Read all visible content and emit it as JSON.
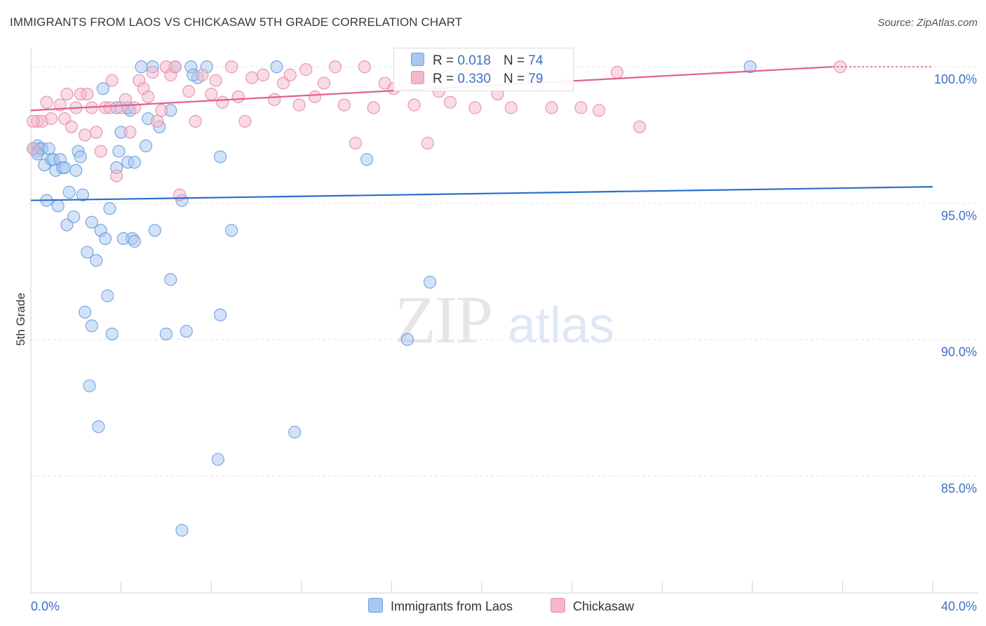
{
  "header": {
    "title": "IMMIGRANTS FROM LAOS VS CHICKASAW 5TH GRADE CORRELATION CHART",
    "source": "Source: ZipAtlas.com"
  },
  "watermark": {
    "zip": "ZIP",
    "atlas": "atlas"
  },
  "legend_stats": {
    "r_label": "R =",
    "n_label": "N =",
    "rows": [
      {
        "name": "Immigrants from Laos",
        "r": "0.018",
        "n": "74",
        "color": "#a8c8f0"
      },
      {
        "name": "Chickasaw",
        "r": "0.330",
        "n": "79",
        "color": "#f4b8cc"
      }
    ]
  },
  "chart_data": {
    "type": "scatter",
    "title": "IMMIGRANTS FROM LAOS VS CHICKASAW 5TH GRADE CORRELATION CHART",
    "xlabel": "",
    "ylabel": "5th Grade",
    "xlim": [
      0,
      40
    ],
    "ylim": [
      80.7,
      100.7
    ],
    "x_tick_labels": [
      "0.0%",
      "40.0%"
    ],
    "y_ticks": [
      {
        "value": 100,
        "label": "100.0%"
      },
      {
        "value": 95,
        "label": "95.0%"
      },
      {
        "value": 90,
        "label": "90.0%"
      },
      {
        "value": 85,
        "label": "85.0%"
      }
    ],
    "grid": true,
    "legend_position": "bottom",
    "series": [
      {
        "name": "Immigrants from Laos",
        "color": "#6fa0e0",
        "fill": "#a8c8f0",
        "line_color": "#2a6fcc",
        "r": 0.018,
        "n": 74,
        "trend": {
          "x": [
            0,
            40
          ],
          "y": [
            95.1,
            95.6
          ]
        },
        "points": [
          [
            0.1,
            97.0
          ],
          [
            0.3,
            97.1
          ],
          [
            0.3,
            96.9
          ],
          [
            0.4,
            97.0
          ],
          [
            0.5,
            97.0
          ],
          [
            0.6,
            96.4
          ],
          [
            0.7,
            95.1
          ],
          [
            0.8,
            97.0
          ],
          [
            0.9,
            96.6
          ],
          [
            1.0,
            96.6
          ],
          [
            1.1,
            96.2
          ],
          [
            1.2,
            94.9
          ],
          [
            1.3,
            96.6
          ],
          [
            1.4,
            96.3
          ],
          [
            1.5,
            96.3
          ],
          [
            1.6,
            94.2
          ],
          [
            1.7,
            95.4
          ],
          [
            1.9,
            94.5
          ],
          [
            2.0,
            96.2
          ],
          [
            2.1,
            96.9
          ],
          [
            2.2,
            96.7
          ],
          [
            2.3,
            95.3
          ],
          [
            2.5,
            93.2
          ],
          [
            2.7,
            94.3
          ],
          [
            2.9,
            92.9
          ],
          [
            3.1,
            94.0
          ],
          [
            3.2,
            99.2
          ],
          [
            3.3,
            93.7
          ],
          [
            3.4,
            91.6
          ],
          [
            3.5,
            94.8
          ],
          [
            3.6,
            90.2
          ],
          [
            3.8,
            96.3
          ],
          [
            3.9,
            96.9
          ],
          [
            4.0,
            97.6
          ],
          [
            4.1,
            93.7
          ],
          [
            4.3,
            96.5
          ],
          [
            4.4,
            98.4
          ],
          [
            4.5,
            93.7
          ],
          [
            4.6,
            93.6
          ],
          [
            4.9,
            100.0
          ],
          [
            5.1,
            97.1
          ],
          [
            5.2,
            98.1
          ],
          [
            5.4,
            100.0
          ],
          [
            5.5,
            94.0
          ],
          [
            5.7,
            97.8
          ],
          [
            6.0,
            90.2
          ],
          [
            6.2,
            98.4
          ],
          [
            6.4,
            100.0
          ],
          [
            6.7,
            95.1
          ],
          [
            6.9,
            90.3
          ],
          [
            7.1,
            100.0
          ],
          [
            7.4,
            99.6
          ],
          [
            7.8,
            100.0
          ],
          [
            8.4,
            96.7
          ],
          [
            8.9,
            94.0
          ],
          [
            10.9,
            100.0
          ],
          [
            14.9,
            96.6
          ],
          [
            16.7,
            90.0
          ],
          [
            17.7,
            92.1
          ],
          [
            31.9,
            100.0
          ],
          [
            6.2,
            92.2
          ],
          [
            2.4,
            91.0
          ],
          [
            2.7,
            90.5
          ],
          [
            3.0,
            86.8
          ],
          [
            2.6,
            88.3
          ],
          [
            4.3,
            98.5
          ],
          [
            4.6,
            96.5
          ],
          [
            7.2,
            99.7
          ],
          [
            3.8,
            98.5
          ],
          [
            8.4,
            90.9
          ],
          [
            11.7,
            86.6
          ],
          [
            8.3,
            85.6
          ],
          [
            6.7,
            83.0
          ],
          [
            0.3,
            96.8
          ]
        ]
      },
      {
        "name": "Chickasaw",
        "color": "#e890ac",
        "fill": "#f4b8cc",
        "line_color": "#e0608a",
        "r": 0.33,
        "n": 79,
        "trend": {
          "x": [
            0,
            40
          ],
          "y": [
            98.4,
            100.2
          ]
        },
        "points": [
          [
            0.1,
            97.0
          ],
          [
            0.3,
            98.0
          ],
          [
            0.5,
            98.0
          ],
          [
            0.7,
            98.7
          ],
          [
            0.9,
            98.1
          ],
          [
            1.3,
            98.6
          ],
          [
            1.5,
            98.1
          ],
          [
            1.6,
            99.0
          ],
          [
            1.8,
            97.8
          ],
          [
            2.0,
            98.5
          ],
          [
            2.2,
            99.0
          ],
          [
            2.4,
            97.5
          ],
          [
            2.5,
            99.0
          ],
          [
            2.7,
            98.5
          ],
          [
            2.9,
            97.6
          ],
          [
            3.1,
            96.9
          ],
          [
            3.3,
            98.5
          ],
          [
            3.5,
            98.5
          ],
          [
            3.6,
            99.5
          ],
          [
            3.8,
            96.0
          ],
          [
            4.0,
            98.5
          ],
          [
            4.2,
            98.8
          ],
          [
            4.4,
            97.6
          ],
          [
            4.6,
            98.5
          ],
          [
            4.8,
            99.5
          ],
          [
            5.0,
            99.2
          ],
          [
            5.2,
            98.9
          ],
          [
            5.4,
            99.8
          ],
          [
            5.6,
            98.0
          ],
          [
            5.8,
            98.4
          ],
          [
            6.0,
            100.0
          ],
          [
            6.2,
            99.7
          ],
          [
            6.4,
            100.0
          ],
          [
            6.6,
            95.3
          ],
          [
            7.0,
            99.1
          ],
          [
            7.3,
            98.0
          ],
          [
            7.6,
            99.7
          ],
          [
            8.0,
            99.0
          ],
          [
            8.2,
            99.5
          ],
          [
            8.5,
            98.7
          ],
          [
            8.9,
            100.0
          ],
          [
            9.2,
            98.9
          ],
          [
            9.5,
            98.0
          ],
          [
            9.8,
            99.6
          ],
          [
            10.3,
            99.7
          ],
          [
            10.8,
            98.8
          ],
          [
            11.2,
            99.4
          ],
          [
            11.5,
            99.7
          ],
          [
            11.9,
            98.6
          ],
          [
            12.2,
            99.9
          ],
          [
            12.6,
            98.9
          ],
          [
            13.0,
            99.4
          ],
          [
            13.5,
            100.0
          ],
          [
            13.9,
            98.6
          ],
          [
            14.4,
            97.2
          ],
          [
            14.8,
            100.0
          ],
          [
            15.2,
            98.5
          ],
          [
            15.7,
            99.4
          ],
          [
            16.1,
            99.2
          ],
          [
            16.6,
            99.5
          ],
          [
            17.0,
            98.6
          ],
          [
            17.6,
            97.2
          ],
          [
            18.1,
            99.1
          ],
          [
            18.6,
            98.7
          ],
          [
            19.1,
            99.8
          ],
          [
            19.7,
            98.5
          ],
          [
            20.2,
            100.0
          ],
          [
            20.7,
            99.0
          ],
          [
            21.3,
            98.5
          ],
          [
            21.9,
            99.8
          ],
          [
            22.5,
            99.4
          ],
          [
            23.1,
            98.5
          ],
          [
            23.8,
            99.5
          ],
          [
            24.4,
            98.5
          ],
          [
            25.2,
            98.4
          ],
          [
            26.0,
            99.8
          ],
          [
            27.0,
            97.8
          ],
          [
            35.9,
            100.0
          ],
          [
            0.1,
            98.0
          ]
        ]
      }
    ]
  }
}
